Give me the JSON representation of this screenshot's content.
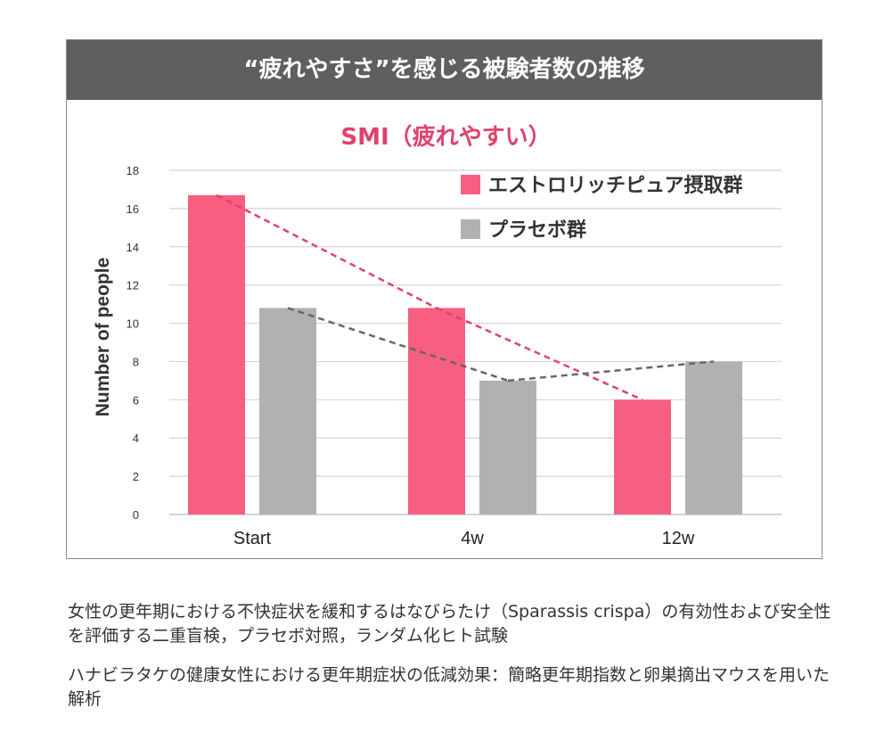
{
  "header": {
    "title": "“疲れやすさ”を感じる被験者数の推移"
  },
  "chart_data": {
    "type": "bar",
    "title": "SMI（疲れやすい）",
    "ylabel": "Number of people",
    "xlabel": "",
    "categories": [
      "Start",
      "4w",
      "12w"
    ],
    "ylim": [
      0,
      18
    ],
    "yticks": [
      "0",
      "2",
      "4",
      "6",
      "8",
      "10",
      "12",
      "14",
      "16",
      "18"
    ],
    "grid": true,
    "legend_position": "top-right",
    "trend_lines": "dashed, connecting each series' bars",
    "series": [
      {
        "name": "エストロリッチピュア摂取群",
        "color": "#f75e80",
        "line_color": "#e0426e",
        "values": [
          16.7,
          10.8,
          6
        ]
      },
      {
        "name": "プラセボ群",
        "color": "#b1b1b1",
        "line_color": "#666666",
        "values": [
          10.8,
          7,
          8
        ]
      }
    ]
  },
  "notes": [
    "女性の更年期における不快症状を緩和するはなびらたけ（Sparassis crispa）の有効性および安全性を評価する二重盲検，プラセボ対照，ランダム化ヒト試験",
    "ハナビラタケの健康女性における更年期症状の低減効果：簡略更年期指数と卵巣摘出マウスを用いた解析"
  ]
}
